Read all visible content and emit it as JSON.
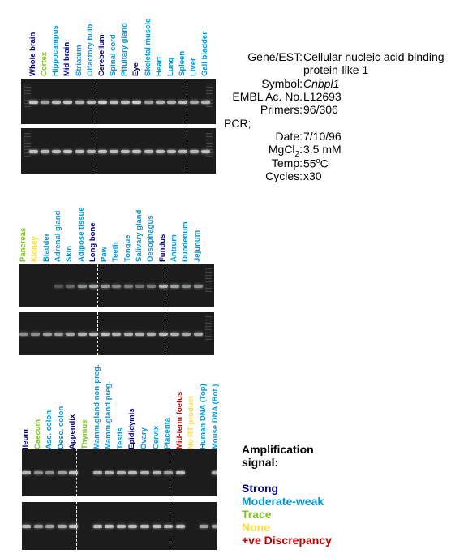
{
  "colors": {
    "strong": "#00007f",
    "moderate_weak": "#0095d9",
    "trace": "#7fbf24",
    "none": "#ffdb3a",
    "discrepancy": "#c00000"
  },
  "panels": [
    {
      "lanes": [
        {
          "label": "Whole brain",
          "signal": "strong"
        },
        {
          "label": "Cortex",
          "signal": "trace"
        },
        {
          "label": "Hippocampus",
          "signal": "moderate_weak"
        },
        {
          "label": "Mid brain",
          "signal": "strong"
        },
        {
          "label": "Striatum",
          "signal": "moderate_weak"
        },
        {
          "label": "Olfactory bulb",
          "signal": "moderate_weak"
        },
        {
          "label": "Cerebellum",
          "signal": "strong"
        },
        {
          "label": "Spinal cord",
          "signal": "moderate_weak"
        },
        {
          "label": "Pituitary gland",
          "signal": "moderate_weak"
        },
        {
          "label": "Eye",
          "signal": "strong"
        },
        {
          "label": "Skeletal muscle",
          "signal": "moderate_weak"
        },
        {
          "label": "Heart",
          "signal": "moderate_weak"
        },
        {
          "label": "Lung",
          "signal": "moderate_weak"
        },
        {
          "label": "Spleen",
          "signal": "moderate_weak"
        },
        {
          "label": "Liver",
          "signal": "moderate_weak"
        },
        {
          "label": "Gall bladder",
          "signal": "moderate_weak"
        }
      ]
    },
    {
      "lanes": [
        {
          "label": "Pancreas",
          "signal": "trace"
        },
        {
          "label": "Kidney",
          "signal": "none"
        },
        {
          "label": "Bladder",
          "signal": "moderate_weak"
        },
        {
          "label": "Adrenal gland",
          "signal": "moderate_weak"
        },
        {
          "label": "Skin",
          "signal": "moderate_weak"
        },
        {
          "label": "Adipose tissue",
          "signal": "moderate_weak"
        },
        {
          "label": "Long bone",
          "signal": "strong"
        },
        {
          "label": "Paw",
          "signal": "moderate_weak"
        },
        {
          "label": "Teeth",
          "signal": "moderate_weak"
        },
        {
          "label": "Tongue",
          "signal": "moderate_weak"
        },
        {
          "label": "Salivary gland",
          "signal": "moderate_weak"
        },
        {
          "label": "Oesophagus",
          "signal": "moderate_weak"
        },
        {
          "label": "Fundus",
          "signal": "strong"
        },
        {
          "label": "Antrum",
          "signal": "moderate_weak"
        },
        {
          "label": "Duodenum",
          "signal": "moderate_weak"
        },
        {
          "label": "Jejunum",
          "signal": "moderate_weak"
        }
      ]
    },
    {
      "lanes": [
        {
          "label": "Ileum",
          "signal": "strong"
        },
        {
          "label": "Caecum",
          "signal": "trace"
        },
        {
          "label": "Asc. colon",
          "signal": "moderate_weak"
        },
        {
          "label": "Desc. colon",
          "signal": "moderate_weak"
        },
        {
          "label": "Appendix",
          "signal": "strong"
        },
        {
          "label": "Thymus",
          "signal": "trace"
        },
        {
          "label": "Mamm.gland non-preg.",
          "signal": "moderate_weak"
        },
        {
          "label": "Mamm.gland preg.",
          "signal": "moderate_weak"
        },
        {
          "label": "Testis",
          "signal": "moderate_weak"
        },
        {
          "label": "Epididymis",
          "signal": "strong"
        },
        {
          "label": "Ovary",
          "signal": "moderate_weak"
        },
        {
          "label": "Cervix",
          "signal": "moderate_weak"
        },
        {
          "label": "Placenta",
          "signal": "moderate_weak"
        },
        {
          "label": "Mid-term foetus",
          "signal": "discrepancy"
        },
        {
          "label": "No RT product",
          "signal": "none"
        },
        {
          "label": "Human DNA (Top)",
          "signal": "moderate_weak"
        },
        {
          "label": "Mouse DNA (Bot.)",
          "signal": "moderate_weak"
        }
      ]
    }
  ],
  "info": {
    "gene_key": "Gene/EST:",
    "gene_val_1": "Cellular nucleic acid binding",
    "gene_val_2": "protein-like 1",
    "symbol_key": "Symbol:",
    "symbol_val": "Cnbpl1",
    "embl_key": "EMBL Ac. No.",
    "embl_val": "L12693",
    "primers_key": "Primers:",
    "primers_val": "96/306",
    "pcr_label": "PCR;",
    "date_key": "Date:",
    "date_val": "7/10/96",
    "mgcl_key_base": "MgCl",
    "mgcl_key_sub": "2",
    "mgcl_key_end": ":",
    "mgcl_val": "3.5 mM",
    "temp_key": "Temp:",
    "temp_val_base": "55",
    "temp_val_sup": "o",
    "temp_val_end": "C",
    "cycles_key": "Cycles:",
    "cycles_val": "x30"
  },
  "legend": {
    "title_1": "Amplification",
    "title_2": "signal:",
    "strong": "Strong",
    "moderate_weak": "Moderate-weak",
    "trace": "Trace",
    "none": "None",
    "discrepancy": "+ve Discrepancy"
  },
  "gels": [
    {
      "top_intensity": [
        0.9,
        0.7,
        0.85,
        0.9,
        0.8,
        0.85,
        0.95,
        0.85,
        0.85,
        0.95,
        0.7,
        0.8,
        0.8,
        0.85,
        0.75,
        0.8
      ],
      "bottom_intensity": [
        0.9,
        0.85,
        0.85,
        0.9,
        0.85,
        0.85,
        0.9,
        0.85,
        0.85,
        0.9,
        0.85,
        0.85,
        0.85,
        0.85,
        0.85,
        0.85
      ]
    },
    {
      "top_intensity": [
        0,
        0,
        0,
        0.3,
        0.4,
        0.6,
        0.75,
        0.65,
        0.55,
        0.5,
        0.45,
        0.5,
        0.8,
        0.7,
        0.6,
        0.6
      ],
      "bottom_intensity": [
        0.6,
        0.6,
        0.7,
        0.7,
        0.75,
        0.8,
        0.85,
        0.85,
        0.8,
        0.8,
        0.8,
        0.8,
        0.85,
        0.8,
        0.75,
        0.75
      ]
    },
    {
      "top_intensity": [
        0.85,
        0.6,
        0.6,
        0.7,
        0.9,
        0,
        0.8,
        0.8,
        0.8,
        0.85,
        0.8,
        0.8,
        0.7,
        0.85,
        0,
        0,
        0.8
      ],
      "bottom_intensity": [
        0.85,
        0.7,
        0.7,
        0.75,
        0.9,
        0,
        0.85,
        0.85,
        0.85,
        0.85,
        0.85,
        0.85,
        0.8,
        0.85,
        0,
        0.7,
        0.7
      ]
    }
  ]
}
